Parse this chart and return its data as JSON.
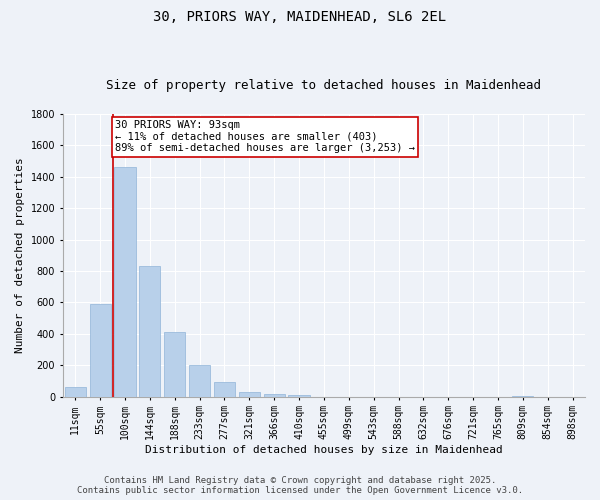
{
  "title_line1": "30, PRIORS WAY, MAIDENHEAD, SL6 2EL",
  "title_line2": "Size of property relative to detached houses in Maidenhead",
  "xlabel": "Distribution of detached houses by size in Maidenhead",
  "ylabel": "Number of detached properties",
  "categories": [
    "11sqm",
    "55sqm",
    "100sqm",
    "144sqm",
    "188sqm",
    "233sqm",
    "277sqm",
    "321sqm",
    "366sqm",
    "410sqm",
    "455sqm",
    "499sqm",
    "543sqm",
    "588sqm",
    "632sqm",
    "676sqm",
    "721sqm",
    "765sqm",
    "809sqm",
    "854sqm",
    "898sqm"
  ],
  "values": [
    60,
    590,
    1460,
    830,
    410,
    200,
    90,
    28,
    15,
    12,
    0,
    0,
    0,
    0,
    0,
    0,
    0,
    0,
    5,
    0,
    0
  ],
  "bar_color": "#b8d0ea",
  "bar_edge_color": "#90b4d8",
  "ylim": [
    0,
    1800
  ],
  "yticks": [
    0,
    200,
    400,
    600,
    800,
    1000,
    1200,
    1400,
    1600,
    1800
  ],
  "annotation_text": "30 PRIORS WAY: 93sqm\n← 11% of detached houses are smaller (403)\n89% of semi-detached houses are larger (3,253) →",
  "annotation_box_color": "#ffffff",
  "annotation_border_color": "#cc0000",
  "vline_color": "#cc0000",
  "background_color": "#eef2f8",
  "grid_color": "#ffffff",
  "footer_line1": "Contains HM Land Registry data © Crown copyright and database right 2025.",
  "footer_line2": "Contains public sector information licensed under the Open Government Licence v3.0.",
  "title_fontsize": 10,
  "subtitle_fontsize": 9,
  "axis_label_fontsize": 8,
  "tick_fontsize": 7,
  "annotation_fontsize": 7.5,
  "footer_fontsize": 6.5
}
